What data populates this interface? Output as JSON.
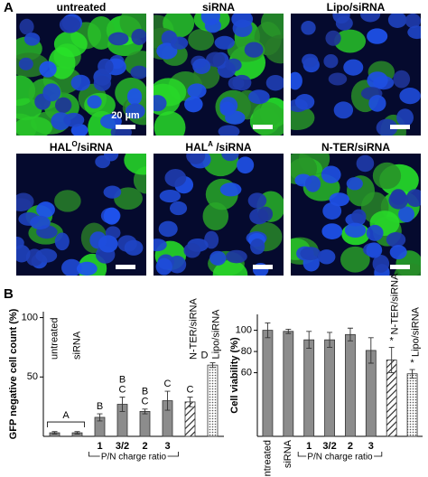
{
  "panel_a": {
    "label": "A",
    "images": [
      {
        "title": "untreated",
        "scale_label": "20 µm"
      },
      {
        "title": "siRNA"
      },
      {
        "title": "Lipo/siRNA"
      },
      {
        "title": [
          "HAL",
          "O",
          "/siRNA"
        ]
      },
      {
        "title": [
          "HAL",
          "A",
          " /siRNA"
        ]
      },
      {
        "title": "N-TER/siRNA"
      }
    ]
  },
  "panel_b_label": "B",
  "chart_data": [
    {
      "type": "bar",
      "y_label": "GFP negative cell count (%)",
      "categories": [
        "untreated",
        "siRNA",
        "1",
        "3/2",
        "2",
        "3",
        "N-TER/siRNA",
        "Lipo/siRNA"
      ],
      "values": [
        3,
        3,
        16,
        27,
        21,
        30,
        29,
        60
      ],
      "errors": [
        1,
        1,
        3,
        6,
        2,
        8,
        4,
        2
      ],
      "color": "#8c8c8c",
      "patterns": [
        null,
        null,
        null,
        null,
        null,
        null,
        "hatch",
        "dots"
      ],
      "significance": [
        [],
        [],
        [
          "B"
        ],
        [
          "B",
          "C"
        ],
        [
          "B",
          "C"
        ],
        [
          "C"
        ],
        [
          "C"
        ],
        [
          "D"
        ]
      ],
      "bracket_label": "A",
      "x_group_label": "P/N charge ratio",
      "ylim": [
        0,
        105
      ],
      "yticks": [
        50,
        100
      ]
    },
    {
      "type": "bar",
      "y_label": "Cell viability (%)",
      "categories": [
        "untreated",
        "siRNA",
        "1",
        "3/2",
        "2",
        "3",
        "N-TER/siRNA",
        "Lipo/siRNA"
      ],
      "values": [
        100,
        99,
        91,
        91,
        96,
        81,
        72,
        59
      ],
      "errors": [
        7,
        2,
        8,
        7,
        6,
        12,
        12,
        4
      ],
      "color": "#8c8c8c",
      "patterns": [
        null,
        null,
        null,
        null,
        null,
        null,
        "hatch",
        "dots"
      ],
      "annotations": [
        null,
        null,
        null,
        null,
        null,
        null,
        "*",
        "*"
      ],
      "x_group_label": "P/N charge ratio",
      "ylim": [
        0,
        115
      ],
      "yticks": [
        60,
        80,
        100
      ]
    }
  ]
}
